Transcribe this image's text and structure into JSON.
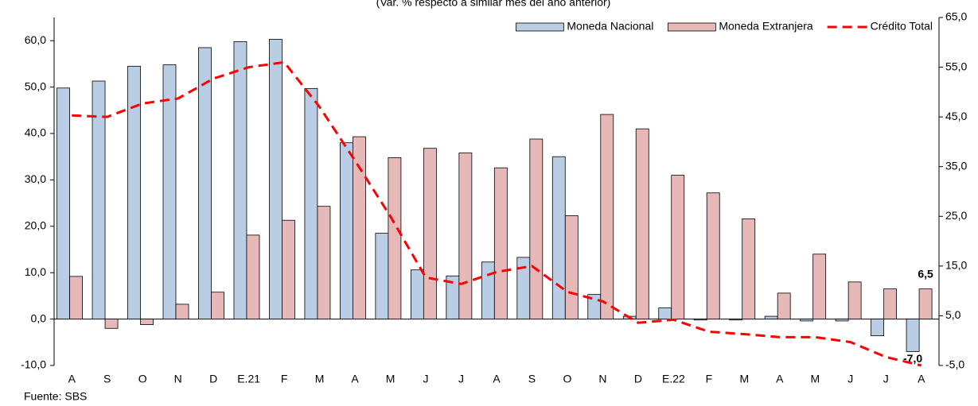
{
  "chart_data": {
    "type": "bar",
    "subtitle": "(Var. % respecto a similar mes del año anterior)",
    "source": "Fuente: SBS",
    "categories": [
      "A",
      "S",
      "O",
      "N",
      "D",
      "E.21",
      "F",
      "M",
      "A",
      "M",
      "J",
      "J",
      "A",
      "S",
      "O",
      "N",
      "D",
      "E.22",
      "F",
      "M",
      "A",
      "M",
      "J",
      "J",
      "A"
    ],
    "series": [
      {
        "name": "Moneda Nacional",
        "color": "#b9cde5",
        "values": [
          49.8,
          51.3,
          54.5,
          54.8,
          58.5,
          59.8,
          60.3,
          49.7,
          38.0,
          18.5,
          10.6,
          9.3,
          12.3,
          13.3,
          35.0,
          5.3,
          0.6,
          2.4,
          -0.2,
          -0.2,
          0.6,
          -0.4,
          -0.4,
          -3.6,
          -7.0
        ],
        "value_labels": [
          null,
          null,
          null,
          null,
          null,
          null,
          null,
          null,
          null,
          null,
          null,
          null,
          null,
          null,
          null,
          null,
          null,
          null,
          null,
          null,
          null,
          null,
          null,
          null,
          "-7,0"
        ]
      },
      {
        "name": "Moneda Extranjera",
        "color": "#e6b9b8",
        "values": [
          9.2,
          -2.0,
          -1.2,
          3.2,
          5.8,
          18.1,
          21.3,
          24.3,
          39.3,
          34.8,
          36.8,
          35.8,
          32.6,
          38.8,
          22.3,
          44.1,
          41.0,
          31.0,
          27.2,
          21.6,
          5.6,
          14.0,
          8.0,
          6.5,
          6.5
        ],
        "value_labels": [
          null,
          null,
          null,
          null,
          null,
          null,
          null,
          null,
          null,
          null,
          null,
          null,
          null,
          null,
          null,
          null,
          null,
          null,
          null,
          null,
          null,
          null,
          null,
          null,
          "6,5"
        ]
      },
      {
        "name": "Crédito Total",
        "color": "#ff0000",
        "type": "line",
        "axis": "y2",
        "values": [
          45.3,
          45.0,
          47.7,
          48.7,
          52.7,
          55.0,
          56.0,
          47.0,
          36.2,
          25.0,
          12.7,
          11.4,
          13.8,
          15.0,
          9.8,
          7.9,
          3.6,
          4.2,
          1.8,
          1.3,
          0.7,
          0.7,
          -0.3,
          -3.3,
          -5.0
        ]
      }
    ],
    "ylim": [
      -10,
      65
    ],
    "yticks": [
      {
        "value": -10,
        "label": "-10,0"
      },
      {
        "value": 0,
        "label": "0,0"
      },
      {
        "value": 10,
        "label": "10,0"
      },
      {
        "value": 20,
        "label": "20,0"
      },
      {
        "value": 30,
        "label": "30,0"
      },
      {
        "value": 40,
        "label": "40,0"
      },
      {
        "value": 50,
        "label": "50,0"
      },
      {
        "value": 60,
        "label": "60,0"
      }
    ],
    "y2lim": [
      -5,
      65
    ],
    "y2ticks": [
      {
        "value": -5,
        "label": "-5,0"
      },
      {
        "value": 5,
        "label": "5,0"
      },
      {
        "value": 15,
        "label": "15,0"
      },
      {
        "value": 25,
        "label": "25,0"
      },
      {
        "value": 35,
        "label": "35,0"
      },
      {
        "value": 45,
        "label": "45,0"
      },
      {
        "value": 55,
        "label": "55,0"
      },
      {
        "value": 65,
        "label": "65,0"
      }
    ],
    "legend": "top-right"
  }
}
